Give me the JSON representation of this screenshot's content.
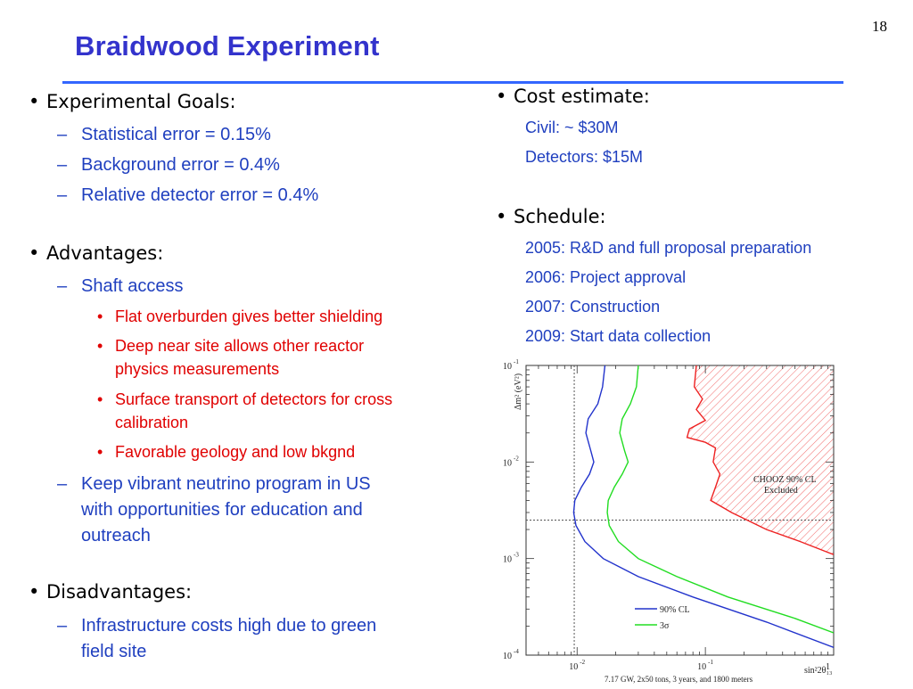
{
  "slide_number": "18",
  "title": "Braidwood Experiment",
  "left": {
    "goals": {
      "heading": "Experimental Goals:",
      "items": [
        "Statistical error = 0.15%",
        "Background error = 0.4%",
        "Relative detector error = 0.4%"
      ]
    },
    "advantages": {
      "heading": "Advantages:",
      "shaft": "Shaft access",
      "shaft_items": [
        "Flat overburden gives better shielding",
        "Deep near site allows other reactor",
        "physics measurements",
        "Surface transport of detectors for cross",
        "calibration",
        "Favorable geology and low bkgnd"
      ],
      "program_lines": [
        "Keep vibrant neutrino program in US",
        "with opportunities for education and",
        "outreach"
      ]
    },
    "disadvantages": {
      "heading": "Disadvantages:",
      "lines": [
        "Infrastructure costs high due to green",
        "field site"
      ]
    }
  },
  "right": {
    "cost": {
      "heading": "Cost estimate:",
      "items": [
        "Civil: ~ $30M",
        "Detectors: $15M"
      ]
    },
    "schedule": {
      "heading": "Schedule:",
      "items": [
        "2005: R&D and full proposal preparation",
        "2006: Project approval",
        "2007: Construction",
        "2009: Start data collection"
      ]
    }
  },
  "chart_data": {
    "type": "line",
    "x_scale": "log",
    "y_scale": "log",
    "xlim": [
      0.004,
      1
    ],
    "ylim": [
      0.0001,
      0.1
    ],
    "x_ticks": [
      {
        "base": "10",
        "exp": "-2",
        "value": 0.01
      },
      {
        "base": "10",
        "exp": "-1",
        "value": 0.1
      },
      {
        "base": "1",
        "exp": "",
        "value": 1
      }
    ],
    "y_ticks": [
      {
        "base": "10",
        "exp": "-1",
        "value": 0.1
      },
      {
        "base": "10",
        "exp": "-2",
        "value": 0.01
      },
      {
        "base": "10",
        "exp": "-3",
        "value": 0.001
      },
      {
        "base": "10",
        "exp": "-4",
        "value": 0.0001
      }
    ],
    "ylabel": "Δm² (eV²)",
    "xlabel": "sin²2θ₁₃",
    "caption": "7.17 GW, 2x50 tons, 3 years, and 1800 meters",
    "region_label": [
      "CHOOZ 90% CL",
      "Excluded"
    ],
    "reference_lines": {
      "x": 0.0095,
      "y": 0.0025
    },
    "series": [
      {
        "name": "90% CL",
        "color": "#2233cc",
        "points": [
          [
            0.0165,
            0.1
          ],
          [
            0.0158,
            0.06
          ],
          [
            0.0145,
            0.04
          ],
          [
            0.0122,
            0.028
          ],
          [
            0.0117,
            0.02
          ],
          [
            0.0128,
            0.013
          ],
          [
            0.0135,
            0.01
          ],
          [
            0.0125,
            0.0075
          ],
          [
            0.0108,
            0.0055
          ],
          [
            0.0096,
            0.004
          ],
          [
            0.0094,
            0.003
          ],
          [
            0.0098,
            0.0022
          ],
          [
            0.0115,
            0.0015
          ],
          [
            0.016,
            0.001
          ],
          [
            0.03,
            0.00065
          ],
          [
            0.08,
            0.0004
          ],
          [
            0.3,
            0.00022
          ],
          [
            1,
            0.00012
          ]
        ]
      },
      {
        "name": "3σ",
        "color": "#22dd22",
        "points": [
          [
            0.03,
            0.1
          ],
          [
            0.029,
            0.06
          ],
          [
            0.026,
            0.04
          ],
          [
            0.0225,
            0.028
          ],
          [
            0.0215,
            0.02
          ],
          [
            0.0235,
            0.013
          ],
          [
            0.025,
            0.01
          ],
          [
            0.0225,
            0.0075
          ],
          [
            0.0195,
            0.0055
          ],
          [
            0.0175,
            0.004
          ],
          [
            0.0172,
            0.003
          ],
          [
            0.0178,
            0.0022
          ],
          [
            0.021,
            0.0015
          ],
          [
            0.03,
            0.001
          ],
          [
            0.06,
            0.00065
          ],
          [
            0.15,
            0.0004
          ],
          [
            0.5,
            0.00024
          ],
          [
            1,
            0.00017
          ]
        ]
      },
      {
        "name": "CHOOZ 90% CL",
        "color": "#ee2222",
        "points": [
          [
            0.085,
            0.1
          ],
          [
            0.082,
            0.06
          ],
          [
            0.095,
            0.045
          ],
          [
            0.085,
            0.035
          ],
          [
            0.1,
            0.027
          ],
          [
            0.075,
            0.022
          ],
          [
            0.072,
            0.018
          ],
          [
            0.1,
            0.016
          ],
          [
            0.12,
            0.014
          ],
          [
            0.115,
            0.01
          ],
          [
            0.13,
            0.0075
          ],
          [
            0.12,
            0.0055
          ],
          [
            0.11,
            0.004
          ],
          [
            0.16,
            0.003
          ],
          [
            0.3,
            0.002
          ],
          [
            0.55,
            0.0015
          ],
          [
            1,
            0.0011
          ]
        ]
      }
    ],
    "legend": [
      {
        "label": "90% CL",
        "color": "#2233cc"
      },
      {
        "label": "3σ",
        "color": "#22dd22"
      }
    ]
  }
}
